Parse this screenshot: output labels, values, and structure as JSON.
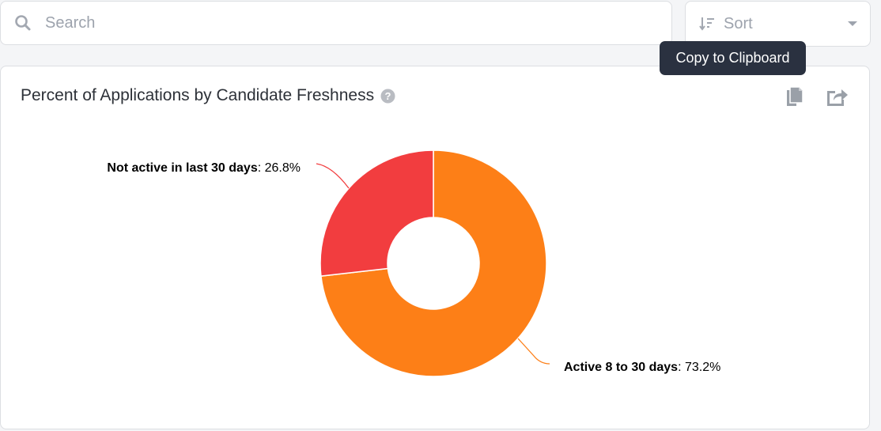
{
  "search": {
    "placeholder": "Search"
  },
  "sort": {
    "label": "Sort"
  },
  "tooltip": {
    "text": "Copy to Clipboard"
  },
  "card": {
    "title": "Percent of Applications by Candidate Freshness",
    "help_icon": "question-circle-icon",
    "actions": [
      "copy-icon",
      "share-icon"
    ]
  },
  "colors": {
    "active": "#fd7f17",
    "not_active": "#f23d3f",
    "tooltip_bg": "#2a3140"
  },
  "chart_data": {
    "type": "pie",
    "donut": true,
    "slices": [
      {
        "name": "Active 8 to 30 days",
        "value": 73.2,
        "label": "73.2%",
        "color": "#fd7f17"
      },
      {
        "name": "Not active in last 30 days",
        "value": 26.8,
        "label": "26.8%",
        "color": "#f23d3f"
      }
    ]
  }
}
